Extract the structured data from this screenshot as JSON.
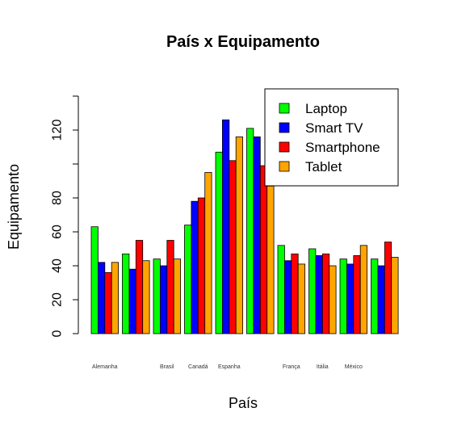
{
  "chart_data": {
    "type": "bar",
    "title": "País x Equipamento",
    "xlabel": "País",
    "ylabel": "Equipamento",
    "ylim": [
      0,
      140
    ],
    "yticks": [
      0,
      20,
      40,
      60,
      80,
      100,
      120,
      140
    ],
    "ytick_labels": [
      "0",
      "20",
      "40",
      "60",
      "80",
      "",
      "120",
      ""
    ],
    "categories": [
      "Alemanha",
      "",
      "Brasil",
      "Canadá",
      "Espanha",
      "",
      "França",
      "Itália",
      "México",
      ""
    ],
    "series": [
      {
        "name": "Laptop",
        "color": "#00ff00",
        "values": [
          63,
          47,
          44,
          64,
          107,
          121,
          52,
          50,
          44,
          44
        ]
      },
      {
        "name": "Smart TV",
        "color": "#0000ff",
        "values": [
          42,
          38,
          40,
          78,
          126,
          116,
          43,
          46,
          41,
          40
        ]
      },
      {
        "name": "Smartphone",
        "color": "#ff0000",
        "values": [
          36,
          55,
          55,
          80,
          102,
          99,
          47,
          47,
          46,
          54
        ]
      },
      {
        "name": "Tablet",
        "color": "#ffa500",
        "values": [
          42,
          43,
          44,
          95,
          116,
          87,
          41,
          40,
          52,
          45
        ]
      }
    ],
    "legend_position": "top-right",
    "grid": false
  }
}
